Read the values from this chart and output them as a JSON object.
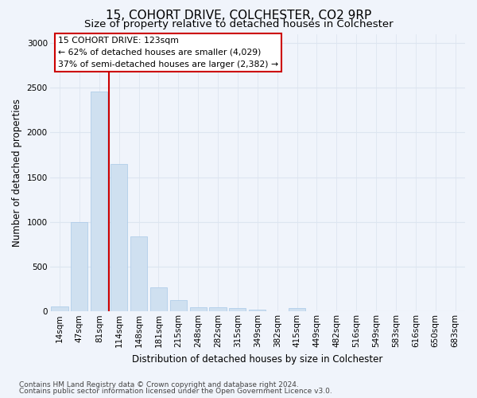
{
  "title": "15, COHORT DRIVE, COLCHESTER, CO2 9RP",
  "subtitle": "Size of property relative to detached houses in Colchester",
  "xlabel": "Distribution of detached houses by size in Colchester",
  "ylabel": "Number of detached properties",
  "categories": [
    "14sqm",
    "47sqm",
    "81sqm",
    "114sqm",
    "148sqm",
    "181sqm",
    "215sqm",
    "248sqm",
    "282sqm",
    "315sqm",
    "349sqm",
    "382sqm",
    "415sqm",
    "449sqm",
    "482sqm",
    "516sqm",
    "549sqm",
    "583sqm",
    "616sqm",
    "650sqm",
    "683sqm"
  ],
  "values": [
    55,
    1000,
    2460,
    1650,
    840,
    270,
    130,
    50,
    50,
    40,
    22,
    0,
    35,
    0,
    0,
    0,
    0,
    0,
    0,
    0,
    0
  ],
  "bar_color": "#cfe0f0",
  "bar_edge_color": "#a8c8e8",
  "grid_color": "#dde5f0",
  "background_color": "#f0f4fb",
  "vline_x": 3.0,
  "vline_color": "#cc0000",
  "annotation_line1": "15 COHORT DRIVE: 123sqm",
  "annotation_line2": "← 62% of detached houses are smaller (4,029)",
  "annotation_line3": "37% of semi-detached houses are larger (2,382) →",
  "footnote1": "Contains HM Land Registry data © Crown copyright and database right 2024.",
  "footnote2": "Contains public sector information licensed under the Open Government Licence v3.0.",
  "ylim": [
    0,
    3100
  ],
  "yticks": [
    0,
    500,
    1000,
    1500,
    2000,
    2500,
    3000
  ],
  "title_fontsize": 11,
  "subtitle_fontsize": 9.5,
  "axis_label_fontsize": 8.5,
  "tick_fontsize": 7.5,
  "footnote_fontsize": 6.5
}
